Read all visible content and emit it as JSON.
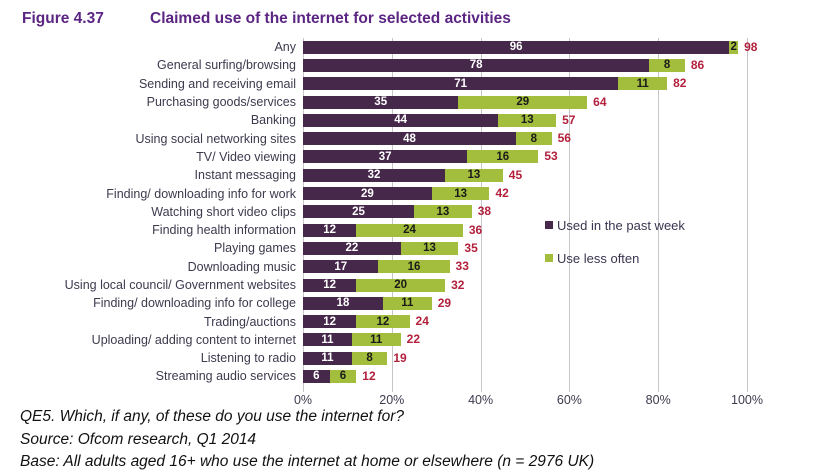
{
  "figure": {
    "label": "Figure 4.37",
    "title": "Claimed use of the internet for selected activities"
  },
  "chart_data": {
    "type": "bar",
    "orientation": "horizontal",
    "stacked": true,
    "title": "Claimed use of the internet for selected activities",
    "categories": [
      "Any",
      "General surfing/browsing",
      "Sending and receiving email",
      "Purchasing goods/services",
      "Banking",
      "Using social networking sites",
      "TV/ Video viewing",
      "Instant messaging",
      "Finding/ downloading info for work",
      "Watching short video clips",
      "Finding health information",
      "Playing games",
      "Downloading music",
      "Using local council/ Government websites",
      "Finding/ downloading info for college",
      "Trading/auctions",
      "Uploading/ adding content to internet",
      "Listening to radio",
      "Streaming audio services"
    ],
    "series": [
      {
        "name": "Used in the past week",
        "color": "#46284B",
        "values": [
          96,
          78,
          71,
          35,
          44,
          48,
          37,
          32,
          29,
          25,
          12,
          22,
          17,
          12,
          18,
          12,
          11,
          11,
          6
        ]
      },
      {
        "name": "Use less often",
        "color": "#A3BE3C",
        "values": [
          2,
          8,
          11,
          29,
          13,
          8,
          16,
          13,
          13,
          13,
          24,
          13,
          16,
          20,
          11,
          12,
          11,
          8,
          6
        ]
      }
    ],
    "totals": [
      98,
      86,
      82,
      64,
      57,
      56,
      53,
      45,
      42,
      38,
      36,
      35,
      33,
      32,
      29,
      24,
      22,
      19,
      12
    ],
    "x_axis": {
      "ticks": [
        {
          "label": "0%",
          "value": 0
        },
        {
          "label": "20%",
          "value": 20
        },
        {
          "label": "40%",
          "value": 40
        },
        {
          "label": "60%",
          "value": 60
        },
        {
          "label": "80%",
          "value": 80
        },
        {
          "label": "100%",
          "value": 100
        }
      ],
      "min": 0,
      "max": 100
    },
    "legend_position": "center-right",
    "grid": true,
    "colors": {
      "total_label": "#B2203C",
      "gridline": "#C6C6C6",
      "title": "#5B2583"
    }
  },
  "footnotes": {
    "line1": "QE5. Which, if any, of these do you use the internet for?",
    "line2": "Source: Ofcom research, Q1 2014",
    "line3": "Base: All adults aged 16+ who use the internet at home or elsewhere (n = 2976 UK)"
  }
}
